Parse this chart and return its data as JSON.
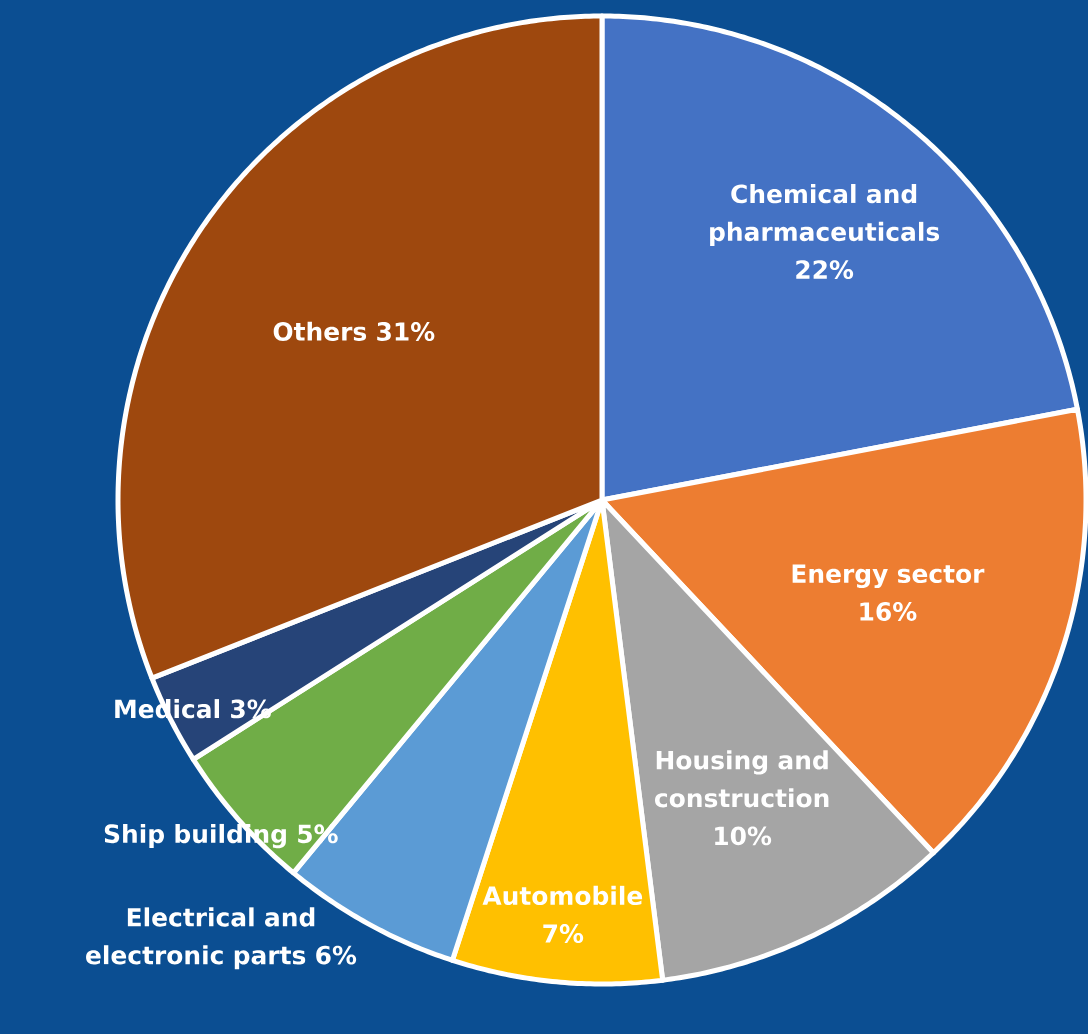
{
  "chart_data": {
    "type": "pie",
    "categories": [
      "Chemical and pharmaceuticals",
      "Energy sector",
      "Housing and construction",
      "Automobile",
      "Electrical and electronic parts",
      "Ship building",
      "Medical",
      "Others"
    ],
    "values": [
      22,
      16,
      10,
      7,
      6,
      5,
      3,
      31
    ],
    "value_labels": [
      "22%",
      "16%",
      "10%",
      "7%",
      "6%",
      "5%",
      "3%",
      "31%"
    ],
    "colors": [
      "#4472c4",
      "#ed7d31",
      "#a5a5a5",
      "#ffc000",
      "#5b9bd5",
      "#70ad47",
      "#264478",
      "#9e480e"
    ]
  }
}
